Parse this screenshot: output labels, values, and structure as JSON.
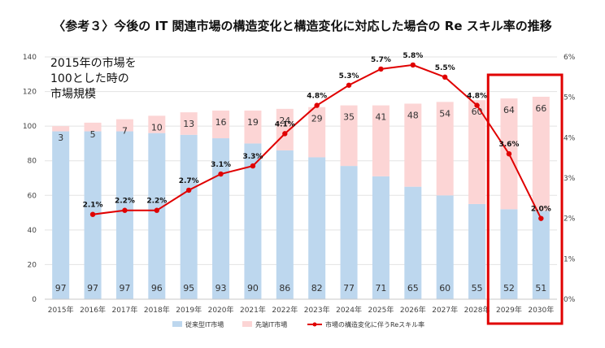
{
  "chart_data": {
    "type": "bar",
    "title": "〈参考３〉今後の IT 関連市場の構造変化と構造変化に対応した場合の Re スキル率の推移",
    "annotation_lines": [
      "2015年の市場を",
      "100とした時の",
      "市場規模"
    ],
    "categories": [
      "2015年",
      "2016年",
      "2017年",
      "2018年",
      "2019年",
      "2020年",
      "2021年",
      "2022年",
      "2023年",
      "2024年",
      "2025年",
      "2026年",
      "2027年",
      "2028年",
      "2029年",
      "2030年"
    ],
    "series": [
      {
        "name": "従来型IT市場",
        "kind": "bar",
        "color": "#bdd7ee",
        "values": [
          97,
          97,
          97,
          96,
          95,
          93,
          90,
          86,
          82,
          77,
          71,
          65,
          60,
          55,
          52,
          51
        ]
      },
      {
        "name": "先端IT市場",
        "kind": "bar",
        "color": "#fcd5d5",
        "values": [
          3,
          5,
          7,
          10,
          13,
          16,
          19,
          24,
          29,
          35,
          41,
          48,
          54,
          60,
          64,
          66
        ]
      },
      {
        "name": "市場の構造変化に伴うReスキル率",
        "kind": "line",
        "axis": "right",
        "color": "#e00000",
        "values": [
          null,
          2.1,
          2.2,
          2.2,
          2.7,
          3.1,
          3.3,
          4.1,
          4.8,
          5.3,
          5.7,
          5.8,
          5.5,
          4.8,
          3.6,
          2.0
        ],
        "labels": [
          "",
          "2.1%",
          "2.2%",
          "2.2%",
          "2.7%",
          "3.1%",
          "3.3%",
          "4.1%",
          "4.8%",
          "5.3%",
          "5.7%",
          "5.8%",
          "5.5%",
          "4.8%",
          "3.6%",
          "2.0%"
        ]
      }
    ],
    "y_left": {
      "min": 0,
      "max": 140,
      "ticks": [
        "0",
        "20",
        "40",
        "60",
        "80",
        "100",
        "120",
        "140"
      ]
    },
    "y_right": {
      "min": 0,
      "max": 6,
      "ticks": [
        "0%",
        "1%",
        "2%",
        "3%",
        "4%",
        "5%",
        "6%"
      ]
    },
    "highlight": {
      "from_category": "2029年",
      "to_category": "2030年",
      "color": "#e00000"
    },
    "grid": "horizontal",
    "legend_position": "bottom"
  }
}
